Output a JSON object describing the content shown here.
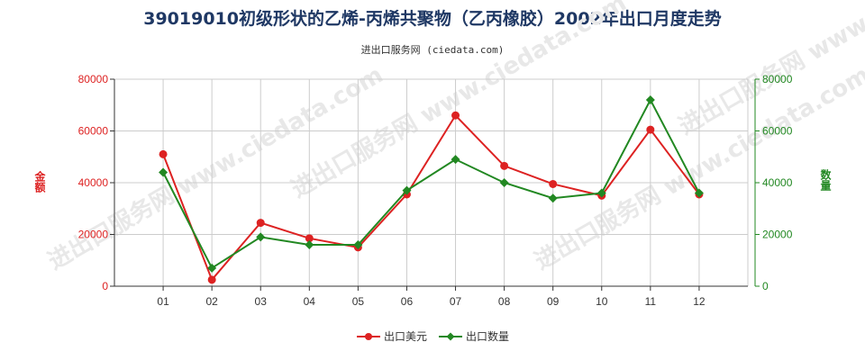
{
  "title": "39019010初级形状的乙烯-丙烯共聚物（乙丙橡胶）2002年出口月度走势",
  "subtitle": "进出口服务网 (ciedata.com)",
  "watermark": "进出口服务网 www.ciedata.com",
  "colors": {
    "usd": "#dd2222",
    "qty": "#228822",
    "grid": "#cccccc",
    "axis": "#333333"
  },
  "chart_data": {
    "type": "line",
    "title": "39019010初级形状的乙烯-丙烯共聚物（乙丙橡胶）2002年出口月度走势",
    "categories": [
      "01",
      "02",
      "03",
      "04",
      "05",
      "06",
      "07",
      "08",
      "09",
      "10",
      "11",
      "12"
    ],
    "ylabel_left": "金额",
    "ylabel_right": "数量",
    "ylim_left": [
      0,
      80000
    ],
    "ylim_right": [
      0,
      80000
    ],
    "yticks_left": [
      "0",
      "20000",
      "40000",
      "60000",
      "80000"
    ],
    "yticks_right": [
      "0",
      "20000",
      "40000",
      "60000",
      "80000"
    ],
    "grid": true,
    "legend_position": "bottom",
    "series": [
      {
        "name": "出口美元",
        "axis": "left",
        "color": "#dd2222",
        "values": [
          51000,
          2500,
          24500,
          18500,
          15000,
          35500,
          66000,
          46500,
          39500,
          35000,
          60500,
          35500
        ]
      },
      {
        "name": "出口数量",
        "axis": "right",
        "color": "#228822",
        "values": [
          44000,
          7000,
          19000,
          16000,
          16000,
          37000,
          49000,
          40000,
          34000,
          36000,
          72000,
          36000
        ]
      }
    ]
  }
}
